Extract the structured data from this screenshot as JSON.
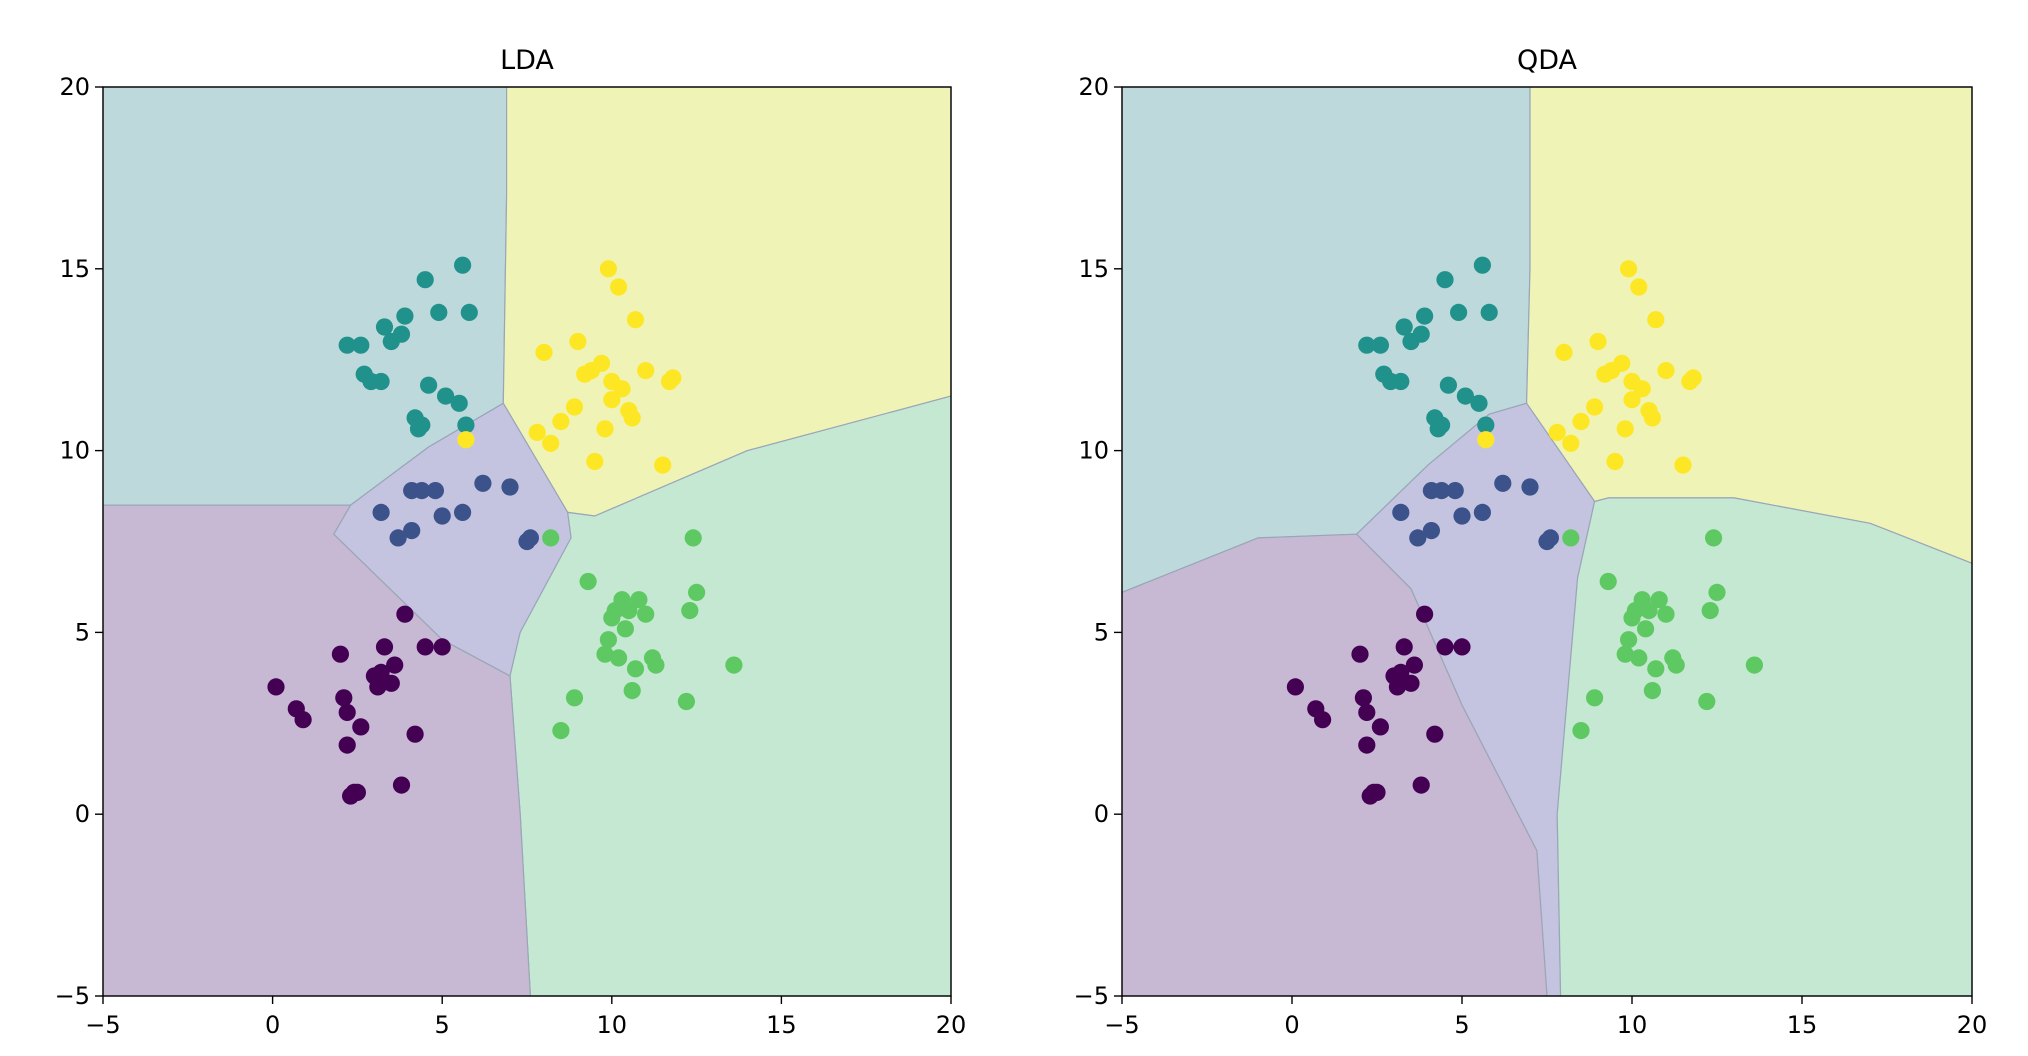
{
  "chart_data": [
    {
      "type": "scatter",
      "title": "LDA",
      "xlabel": "",
      "ylabel": "",
      "xlim": [
        -5,
        20
      ],
      "ylim": [
        -5,
        20
      ],
      "xticks": [
        -5,
        0,
        5,
        10,
        15,
        20
      ],
      "yticks": [
        -5,
        0,
        5,
        10,
        15,
        20
      ],
      "tick_labels": [
        "−5",
        "0",
        "5",
        "10",
        "15",
        "20"
      ],
      "grid": false,
      "class_colors": [
        "#440154",
        "#3b528b",
        "#21918c",
        "#5ec962",
        "#fde725"
      ],
      "region_colors": [
        "#c7b8d3",
        "#c5c4e0",
        "#bdd9dc",
        "#c5e8d2",
        "#f0f3b6"
      ],
      "regions": [
        {
          "class": 2,
          "polygon": [
            [
              -5,
              20
            ],
            [
              6.9,
              20
            ],
            [
              6.9,
              17
            ],
            [
              6.8,
              11.3
            ],
            [
              4.6,
              10.1
            ],
            [
              2.3,
              8.5
            ],
            [
              -5,
              8.5
            ]
          ]
        },
        {
          "class": 4,
          "polygon": [
            [
              6.9,
              20
            ],
            [
              20,
              20
            ],
            [
              20,
              11.5
            ],
            [
              14,
              10
            ],
            [
              9.5,
              8.2
            ],
            [
              8.7,
              8.3
            ],
            [
              6.8,
              11.3
            ],
            [
              6.9,
              17
            ]
          ]
        },
        {
          "class": 1,
          "polygon": [
            [
              6.8,
              11.3
            ],
            [
              8.7,
              8.3
            ],
            [
              8.8,
              7.6
            ],
            [
              7.3,
              5.0
            ],
            [
              7.0,
              3.8
            ],
            [
              5.0,
              4.8
            ],
            [
              1.8,
              7.7
            ],
            [
              2.3,
              8.5
            ],
            [
              4.6,
              10.1
            ]
          ]
        },
        {
          "class": 3,
          "polygon": [
            [
              8.7,
              8.3
            ],
            [
              9.5,
              8.2
            ],
            [
              14,
              10
            ],
            [
              20,
              11.5
            ],
            [
              20,
              -5
            ],
            [
              7.6,
              -5
            ],
            [
              7.3,
              0
            ],
            [
              7.0,
              3.8
            ],
            [
              7.3,
              5.0
            ],
            [
              8.8,
              7.6
            ]
          ]
        },
        {
          "class": 0,
          "polygon": [
            [
              -5,
              8.5
            ],
            [
              2.3,
              8.5
            ],
            [
              1.8,
              7.7
            ],
            [
              5.0,
              4.8
            ],
            [
              7.0,
              3.8
            ],
            [
              7.3,
              0
            ],
            [
              7.6,
              -5
            ],
            [
              -5,
              -5
            ]
          ]
        }
      ],
      "points": [
        {
          "class": 0,
          "x": [
            0.1,
            0.7,
            0.9,
            2.0,
            2.1,
            2.2,
            2.2,
            2.3,
            2.4,
            2.5,
            2.6,
            3.0,
            3.1,
            3.2,
            3.3,
            3.5,
            3.6,
            3.8,
            3.9,
            4.2,
            4.5,
            5.0
          ],
          "y": [
            3.5,
            2.9,
            2.6,
            4.4,
            3.2,
            2.8,
            1.9,
            0.5,
            0.6,
            0.6,
            2.4,
            3.8,
            3.5,
            3.9,
            4.6,
            3.6,
            4.1,
            0.8,
            5.5,
            2.2,
            4.6,
            4.6
          ]
        },
        {
          "class": 1,
          "x": [
            3.2,
            3.7,
            4.1,
            4.1,
            4.4,
            4.8,
            5.0,
            5.6,
            6.2,
            7.0,
            7.5,
            7.6
          ],
          "y": [
            8.3,
            7.6,
            7.8,
            8.9,
            8.9,
            8.9,
            8.2,
            8.3,
            9.1,
            9.0,
            7.5,
            7.6
          ]
        },
        {
          "class": 2,
          "x": [
            2.2,
            2.6,
            2.7,
            2.9,
            3.2,
            3.3,
            3.5,
            3.8,
            3.9,
            4.2,
            4.3,
            4.4,
            4.5,
            4.6,
            4.9,
            5.1,
            5.5,
            5.6,
            5.8,
            5.7
          ],
          "y": [
            12.9,
            12.9,
            12.1,
            11.9,
            11.9,
            13.4,
            13.0,
            13.2,
            13.7,
            10.9,
            10.6,
            10.7,
            14.7,
            11.8,
            13.8,
            11.5,
            11.3,
            15.1,
            13.8,
            10.7
          ]
        },
        {
          "class": 3,
          "x": [
            8.2,
            8.5,
            8.9,
            9.3,
            9.8,
            9.9,
            10.0,
            10.1,
            10.2,
            10.3,
            10.4,
            10.5,
            10.6,
            10.7,
            10.8,
            11.0,
            11.2,
            11.3,
            12.2,
            12.3,
            12.4,
            12.5,
            13.6
          ],
          "y": [
            7.6,
            2.3,
            3.2,
            6.4,
            4.4,
            4.8,
            5.4,
            5.6,
            4.3,
            5.9,
            5.1,
            5.6,
            3.4,
            4.0,
            5.9,
            5.5,
            4.3,
            4.1,
            3.1,
            5.6,
            7.6,
            6.1,
            4.1
          ]
        },
        {
          "class": 4,
          "x": [
            5.7,
            7.8,
            8.0,
            8.2,
            8.5,
            8.9,
            9.0,
            9.2,
            9.4,
            9.5,
            9.7,
            9.8,
            9.9,
            10.0,
            10.0,
            10.2,
            10.3,
            10.5,
            10.6,
            10.7,
            11.0,
            11.5,
            11.7,
            11.8
          ],
          "y": [
            10.3,
            10.5,
            12.7,
            10.2,
            10.8,
            11.2,
            13.0,
            12.1,
            12.2,
            9.7,
            12.4,
            10.6,
            15.0,
            11.9,
            11.4,
            14.5,
            11.7,
            11.1,
            10.9,
            13.6,
            12.2,
            9.6,
            11.9,
            12.0
          ]
        }
      ]
    },
    {
      "type": "scatter",
      "title": "QDA",
      "xlabel": "",
      "ylabel": "",
      "xlim": [
        -5,
        20
      ],
      "ylim": [
        -5,
        20
      ],
      "xticks": [
        -5,
        0,
        5,
        10,
        15,
        20
      ],
      "yticks": [
        -5,
        0,
        5,
        10,
        15,
        20
      ],
      "tick_labels": [
        "−5",
        "0",
        "5",
        "10",
        "15",
        "20"
      ],
      "grid": false,
      "class_colors": [
        "#440154",
        "#3b528b",
        "#21918c",
        "#5ec962",
        "#fde725"
      ],
      "region_colors": [
        "#c7b8d3",
        "#c5c4e0",
        "#bdd9dc",
        "#c5e8d2",
        "#f0f3b6"
      ],
      "regions": [
        {
          "class": 2,
          "polygon": [
            [
              -5,
              20
            ],
            [
              7.0,
              20
            ],
            [
              7.0,
              15
            ],
            [
              6.9,
              11.3
            ],
            [
              5.8,
              11.0
            ],
            [
              4.0,
              9.6
            ],
            [
              1.9,
              7.7
            ],
            [
              -1.0,
              7.6
            ],
            [
              -5,
              6.1
            ]
          ]
        },
        {
          "class": 4,
          "polygon": [
            [
              7.0,
              20
            ],
            [
              20,
              20
            ],
            [
              20,
              6.9
            ],
            [
              17,
              8.0
            ],
            [
              13,
              8.7
            ],
            [
              9.3,
              8.7
            ],
            [
              8.9,
              8.6
            ],
            [
              6.9,
              11.3
            ],
            [
              7.0,
              15
            ]
          ]
        },
        {
          "class": 1,
          "polygon": [
            [
              6.9,
              11.3
            ],
            [
              8.9,
              8.6
            ],
            [
              8.4,
              6.5
            ],
            [
              7.8,
              0
            ],
            [
              7.9,
              -5
            ],
            [
              7.5,
              -5
            ],
            [
              7.2,
              -1
            ],
            [
              5.0,
              3.0
            ],
            [
              3.5,
              6.2
            ],
            [
              1.9,
              7.7
            ],
            [
              4.0,
              9.6
            ],
            [
              5.8,
              11.0
            ]
          ]
        },
        {
          "class": 3,
          "polygon": [
            [
              8.9,
              8.6
            ],
            [
              9.3,
              8.7
            ],
            [
              13,
              8.7
            ],
            [
              17,
              8.0
            ],
            [
              20,
              6.9
            ],
            [
              20,
              -5
            ],
            [
              7.9,
              -5
            ],
            [
              7.8,
              0
            ],
            [
              8.4,
              6.5
            ]
          ]
        },
        {
          "class": 0,
          "polygon": [
            [
              -5,
              6.1
            ],
            [
              -1.0,
              7.6
            ],
            [
              1.9,
              7.7
            ],
            [
              3.5,
              6.2
            ],
            [
              5.0,
              3.0
            ],
            [
              7.2,
              -1
            ],
            [
              7.5,
              -5
            ],
            [
              -5,
              -5
            ]
          ]
        }
      ],
      "points": [
        {
          "class": 0,
          "x": [
            0.1,
            0.7,
            0.9,
            2.0,
            2.1,
            2.2,
            2.2,
            2.3,
            2.4,
            2.5,
            2.6,
            3.0,
            3.1,
            3.2,
            3.3,
            3.5,
            3.6,
            3.8,
            3.9,
            4.2,
            4.5,
            5.0
          ],
          "y": [
            3.5,
            2.9,
            2.6,
            4.4,
            3.2,
            2.8,
            1.9,
            0.5,
            0.6,
            0.6,
            2.4,
            3.8,
            3.5,
            3.9,
            4.6,
            3.6,
            4.1,
            0.8,
            5.5,
            2.2,
            4.6,
            4.6
          ]
        },
        {
          "class": 1,
          "x": [
            3.2,
            3.7,
            4.1,
            4.1,
            4.4,
            4.8,
            5.0,
            5.6,
            6.2,
            7.0,
            7.5,
            7.6
          ],
          "y": [
            8.3,
            7.6,
            7.8,
            8.9,
            8.9,
            8.9,
            8.2,
            8.3,
            9.1,
            9.0,
            7.5,
            7.6
          ]
        },
        {
          "class": 2,
          "x": [
            2.2,
            2.6,
            2.7,
            2.9,
            3.2,
            3.3,
            3.5,
            3.8,
            3.9,
            4.2,
            4.3,
            4.4,
            4.5,
            4.6,
            4.9,
            5.1,
            5.5,
            5.6,
            5.8,
            5.7
          ],
          "y": [
            12.9,
            12.9,
            12.1,
            11.9,
            11.9,
            13.4,
            13.0,
            13.2,
            13.7,
            10.9,
            10.6,
            10.7,
            14.7,
            11.8,
            13.8,
            11.5,
            11.3,
            15.1,
            13.8,
            10.7
          ]
        },
        {
          "class": 3,
          "x": [
            8.2,
            8.5,
            8.9,
            9.3,
            9.8,
            9.9,
            10.0,
            10.1,
            10.2,
            10.3,
            10.4,
            10.5,
            10.6,
            10.7,
            10.8,
            11.0,
            11.2,
            11.3,
            12.2,
            12.3,
            12.4,
            12.5,
            13.6
          ],
          "y": [
            7.6,
            2.3,
            3.2,
            6.4,
            4.4,
            4.8,
            5.4,
            5.6,
            4.3,
            5.9,
            5.1,
            5.6,
            3.4,
            4.0,
            5.9,
            5.5,
            4.3,
            4.1,
            3.1,
            5.6,
            7.6,
            6.1,
            4.1
          ]
        },
        {
          "class": 4,
          "x": [
            5.7,
            7.8,
            8.0,
            8.2,
            8.5,
            8.9,
            9.0,
            9.2,
            9.4,
            9.5,
            9.7,
            9.8,
            9.9,
            10.0,
            10.0,
            10.2,
            10.3,
            10.5,
            10.6,
            10.7,
            11.0,
            11.5,
            11.7,
            11.8
          ],
          "y": [
            10.3,
            10.5,
            12.7,
            10.2,
            10.8,
            11.2,
            13.0,
            12.1,
            12.2,
            9.7,
            12.4,
            10.6,
            15.0,
            11.9,
            11.4,
            14.5,
            11.7,
            11.1,
            10.9,
            13.6,
            12.2,
            9.6,
            11.9,
            12.0
          ]
        }
      ]
    }
  ]
}
